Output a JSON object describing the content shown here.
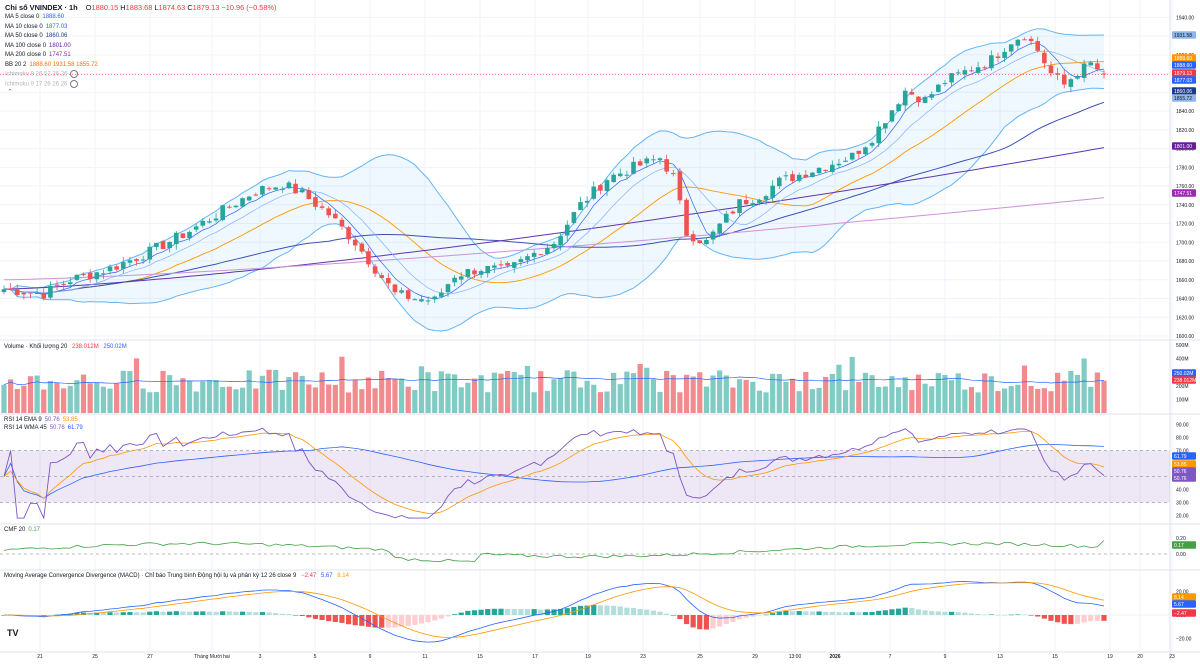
{
  "header": {
    "title": "Chỉ số VNINDEX · 1h",
    "ohlc": [
      {
        "k": "O",
        "v": "1880.15"
      },
      {
        "k": "H",
        "v": "1883.68"
      },
      {
        "k": "L",
        "v": "1874.63"
      },
      {
        "k": "C",
        "v": "1879.13"
      },
      {
        "k": "",
        "v": "−10.96 (−0.58%)"
      }
    ]
  },
  "ma_legend": [
    {
      "label": "MA 5 close 0",
      "value": "1888.60",
      "color": "#2962ff"
    },
    {
      "label": "MA 10 close 0",
      "value": "1877.03",
      "color": "#2962ff"
    },
    {
      "label": "MA 50 close 0",
      "value": "1860.06",
      "color": "#1e3a8a"
    },
    {
      "label": "MA 100 close 0",
      "value": "1801.00",
      "color": "#6a1b9a"
    },
    {
      "label": "MA 200 close 0",
      "value": "1747.51",
      "color": "#9c27b0"
    },
    {
      "label": "BB 20 2",
      "value": "1888.60  1931.58  1855.72",
      "color": "#ff6d00"
    },
    {
      "label": "Ichimoku 9 26 52 26 26",
      "value": "",
      "color": "#b2b5be"
    },
    {
      "label": "Ichimoku 9 17 26 26 26",
      "value": "",
      "color": "#b2b5be"
    }
  ],
  "volume_legend": {
    "label": "Volume · Khối lượng 20",
    "v1": "238.012M",
    "v2": "250.02M"
  },
  "rsi_legend": [
    {
      "label": "RSI 14 EMA 9",
      "v1": "50.76",
      "v2": "53.85"
    },
    {
      "label": "RSI 14 WMA 45",
      "v1": "50.76",
      "v2": "61.79"
    }
  ],
  "cmf_legend": {
    "label": "CMF 20",
    "v": "0.17"
  },
  "macd_legend": {
    "label": "Moving Average Convergence Divergence (MACD) · Chỉ báo Trung bình Động hội tụ và phân kỳ 12 26 close 9",
    "v1": "−2.47",
    "v2": "5.67",
    "v3": "8.14"
  },
  "price_axis": {
    "ticks": [
      "1940.00",
      "1920.00",
      "1900.00",
      "1880.00",
      "1860.00",
      "1840.00",
      "1820.00",
      "1800.00",
      "1780.00",
      "1760.00",
      "1740.00",
      "1720.00",
      "1700.00",
      "1680.00",
      "1660.00",
      "1640.00",
      "1620.00",
      "1600.00"
    ],
    "labels": [
      {
        "text": "1931.58",
        "color": "#90b5e8",
        "tc": "#131722"
      },
      {
        "text": "1888.60",
        "color": "#ff9800",
        "tc": "#ffffff"
      },
      {
        "text": "1888.60",
        "color": "#2962ff",
        "tc": "#ffffff"
      },
      {
        "text": "1879.13",
        "color": "#f23645",
        "tc": "#ffffff"
      },
      {
        "text": "1877.03",
        "color": "#2962ff",
        "tc": "#ffffff"
      },
      {
        "text": "1860.06",
        "color": "#1e3a8a",
        "tc": "#ffffff"
      },
      {
        "text": "1855.72",
        "color": "#90b5e8",
        "tc": "#131722"
      },
      {
        "text": "1801.00",
        "color": "#6a1b9a",
        "tc": "#ffffff"
      },
      {
        "text": "1747.51",
        "color": "#9c27b0",
        "tc": "#ffffff"
      }
    ]
  },
  "volume_axis": {
    "ticks": [
      "500M",
      "400M",
      "300M",
      "200M",
      "100M"
    ],
    "labels": [
      {
        "text": "250.02M",
        "color": "#2962ff",
        "tc": "#ffffff"
      },
      {
        "text": "238.012M",
        "color": "#f23645",
        "tc": "#ffffff"
      }
    ]
  },
  "rsi_axis": {
    "ticks": [
      "90.00",
      "80.00",
      "70.00",
      "60.00",
      "50.00",
      "40.00",
      "30.00",
      "20.00"
    ],
    "labels": [
      {
        "text": "61.79",
        "color": "#2962ff",
        "tc": "#ffffff"
      },
      {
        "text": "53.85",
        "color": "#ff9800",
        "tc": "#ffffff"
      },
      {
        "text": "50.76",
        "color": "#7e57c2",
        "tc": "#ffffff"
      },
      {
        "text": "50.76",
        "color": "#7e57c2",
        "tc": "#ffffff"
      }
    ]
  },
  "cmf_axis": {
    "ticks": [
      "0.20",
      "0.00"
    ],
    "labels": [
      {
        "text": "0.17",
        "color": "#43a047",
        "tc": "#ffffff"
      }
    ]
  },
  "macd_axis": {
    "ticks": [
      "20.00",
      "0.00",
      "−20.00"
    ],
    "labels": [
      {
        "text": "8.14",
        "color": "#ff9800",
        "tc": "#ffffff"
      },
      {
        "text": "5.67",
        "color": "#2962ff",
        "tc": "#ffffff"
      },
      {
        "text": "−2.47",
        "color": "#f23645",
        "tc": "#ffffff"
      }
    ]
  },
  "time_axis": [
    "21",
    "25",
    "27",
    "Tháng Mười hai",
    "3",
    "5",
    "9",
    "11",
    "15",
    "17",
    "19",
    "23",
    "25",
    "29",
    "13:00",
    "2026",
    "7",
    "9",
    "13",
    "15",
    "19",
    "20",
    "23"
  ],
  "chart_data": [
    {
      "type": "candlestick",
      "title": "Chỉ số VNINDEX · 1h",
      "ylim": [
        1600,
        1950
      ],
      "grid": true,
      "trend_keypoints": [
        [
          0,
          1650
        ],
        [
          6,
          1645
        ],
        [
          10,
          1660
        ],
        [
          16,
          1672
        ],
        [
          22,
          1690
        ],
        [
          28,
          1712
        ],
        [
          34,
          1738
        ],
        [
          38,
          1755
        ],
        [
          42,
          1762
        ],
        [
          45,
          1752
        ],
        [
          49,
          1730
        ],
        [
          53,
          1700
        ],
        [
          56,
          1672
        ],
        [
          59,
          1645
        ],
        [
          62,
          1640
        ],
        [
          65,
          1638
        ],
        [
          68,
          1665
        ],
        [
          72,
          1672
        ],
        [
          76,
          1670
        ],
        [
          80,
          1688
        ],
        [
          83,
          1700
        ],
        [
          87,
          1740
        ],
        [
          91,
          1768
        ],
        [
          95,
          1780
        ],
        [
          99,
          1790
        ],
        [
          101,
          1770
        ],
        [
          103,
          1710
        ],
        [
          106,
          1700
        ],
        [
          108,
          1718
        ],
        [
          111,
          1742
        ],
        [
          114,
          1750
        ],
        [
          117,
          1765
        ],
        [
          120,
          1772
        ],
        [
          124,
          1782
        ],
        [
          128,
          1792
        ],
        [
          131,
          1812
        ],
        [
          134,
          1842
        ],
        [
          136,
          1862
        ],
        [
          139,
          1852
        ],
        [
          142,
          1872
        ],
        [
          145,
          1882
        ],
        [
          149,
          1895
        ],
        [
          152,
          1915
        ],
        [
          154,
          1922
        ],
        [
          156,
          1905
        ],
        [
          158,
          1880
        ],
        [
          160,
          1868
        ],
        [
          162,
          1882
        ],
        [
          164,
          1890
        ],
        [
          166,
          1879
        ]
      ],
      "last": {
        "open": 1880.15,
        "high": 1883.68,
        "low": 1874.63,
        "close": 1879.13
      },
      "series": [
        {
          "name": "MA 5 close 0",
          "last": 1888.6
        },
        {
          "name": "MA 10 close 0",
          "last": 1877.03
        },
        {
          "name": "MA 50 close 0",
          "last": 1860.06
        },
        {
          "name": "MA 100 close 0",
          "last": 1801.0
        },
        {
          "name": "MA 200 close 0",
          "last": 1747.51
        },
        {
          "name": "BB 20 2",
          "basis": 1888.6,
          "upper": 1931.58,
          "lower": 1855.72
        }
      ]
    },
    {
      "type": "bar",
      "title": "Volume · Khối lượng 20",
      "ylim": [
        0,
        500
      ],
      "last_volume_M": 238.012,
      "ma_volume_M": 250.02
    },
    {
      "type": "line",
      "title": "RSI 14",
      "ylim": [
        15,
        95
      ],
      "band": [
        30,
        70
      ],
      "series": [
        {
          "name": "RSI 14 EMA 9",
          "last": 53.85
        },
        {
          "name": "RSI 14 WMA 45",
          "last": 61.79
        },
        {
          "name": "RSI",
          "last": 50.76
        }
      ]
    },
    {
      "type": "line",
      "title": "CMF 20",
      "ylim": [
        -0.15,
        0.3
      ],
      "series": [
        {
          "name": "CMF 20",
          "last": 0.17
        }
      ]
    },
    {
      "type": "line",
      "title": "MACD 12 26 close 9",
      "ylim": [
        -30,
        30
      ],
      "series": [
        {
          "name": "Histogram",
          "last": -2.47
        },
        {
          "name": "MACD",
          "last": 5.67
        },
        {
          "name": "Signal",
          "last": 8.14
        }
      ]
    }
  ]
}
